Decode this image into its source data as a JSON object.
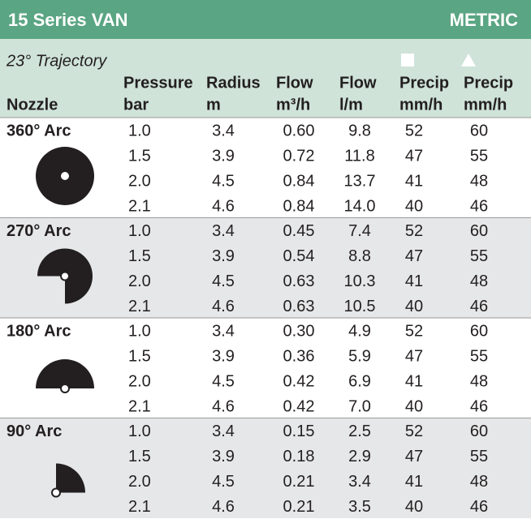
{
  "header": {
    "title": "15 Series VAN",
    "unit_system": "METRIC"
  },
  "table": {
    "trajectory": "23° Trajectory",
    "columns": [
      [
        "Nozzle"
      ],
      [
        "Pressure",
        "bar"
      ],
      [
        "Radius",
        "m"
      ],
      [
        "Flow",
        "m³/h"
      ],
      [
        "Flow",
        "l/m"
      ],
      [
        "Precip",
        "mm/h"
      ],
      [
        "Precip",
        "mm/h"
      ]
    ],
    "groups": [
      {
        "nozzle": "360° Arc",
        "rows": [
          [
            "1.0",
            "3.4",
            "0.60",
            "9.8",
            "52",
            "60"
          ],
          [
            "1.5",
            "3.9",
            "0.72",
            "11.8",
            "47",
            "55"
          ],
          [
            "2.0",
            "4.5",
            "0.84",
            "13.7",
            "41",
            "48"
          ],
          [
            "2.1",
            "4.6",
            "0.84",
            "14.0",
            "40",
            "46"
          ]
        ]
      },
      {
        "nozzle": "270° Arc",
        "rows": [
          [
            "1.0",
            "3.4",
            "0.45",
            "7.4",
            "52",
            "60"
          ],
          [
            "1.5",
            "3.9",
            "0.54",
            "8.8",
            "47",
            "55"
          ],
          [
            "2.0",
            "4.5",
            "0.63",
            "10.3",
            "41",
            "48"
          ],
          [
            "2.1",
            "4.6",
            "0.63",
            "10.5",
            "40",
            "46"
          ]
        ]
      },
      {
        "nozzle": "180° Arc",
        "rows": [
          [
            "1.0",
            "3.4",
            "0.30",
            "4.9",
            "52",
            "60"
          ],
          [
            "1.5",
            "3.9",
            "0.36",
            "5.9",
            "47",
            "55"
          ],
          [
            "2.0",
            "4.5",
            "0.42",
            "6.9",
            "41",
            "48"
          ],
          [
            "2.1",
            "4.6",
            "0.42",
            "7.0",
            "40",
            "46"
          ]
        ]
      },
      {
        "nozzle": "90° Arc",
        "rows": [
          [
            "1.0",
            "3.4",
            "0.15",
            "2.5",
            "52",
            "60"
          ],
          [
            "1.5",
            "3.9",
            "0.18",
            "2.9",
            "47",
            "55"
          ],
          [
            "2.0",
            "4.5",
            "0.21",
            "3.4",
            "41",
            "48"
          ],
          [
            "2.1",
            "4.6",
            "0.21",
            "3.5",
            "40",
            "46"
          ]
        ]
      }
    ]
  }
}
